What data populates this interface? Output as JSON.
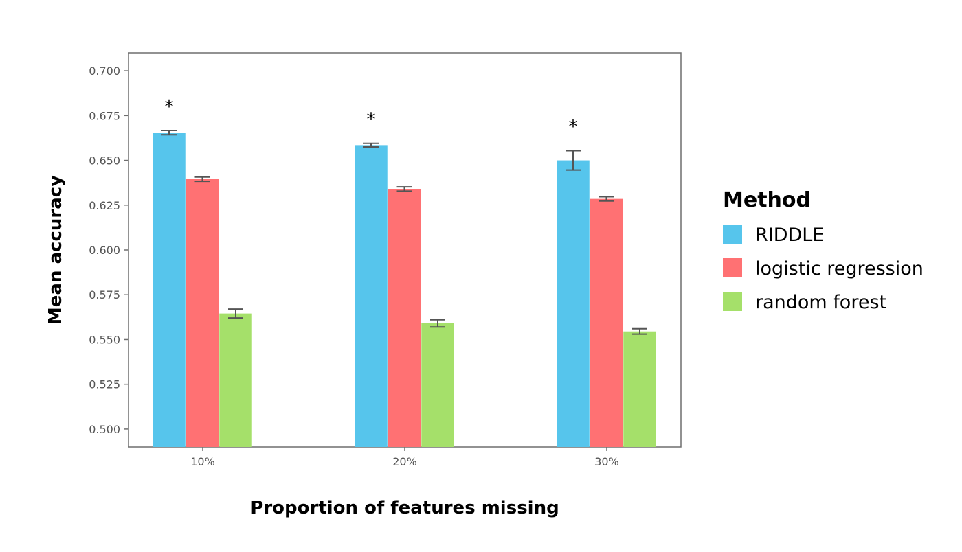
{
  "chart_data": {
    "type": "bar",
    "xlabel": "Proportion of features missing",
    "ylabel": "Mean accuracy",
    "ylim": [
      0.49,
      0.71
    ],
    "yticks": [
      0.5,
      0.525,
      0.55,
      0.575,
      0.6,
      0.625,
      0.65,
      0.675,
      0.7
    ],
    "ytick_labels": [
      "0.500",
      "0.525",
      "0.550",
      "0.575",
      "0.600",
      "0.625",
      "0.650",
      "0.675",
      "0.700"
    ],
    "categories": [
      "10%",
      "20%",
      "30%"
    ],
    "series": [
      {
        "name": "RIDDLE",
        "color": "#56c5ec",
        "values": [
          0.6655,
          0.6585,
          0.65
        ],
        "error": [
          0.0012,
          0.001,
          0.0054
        ]
      },
      {
        "name": "logistic regression",
        "color": "#ff7173",
        "values": [
          0.6395,
          0.634,
          0.6285
        ],
        "error": [
          0.0012,
          0.0012,
          0.0012
        ]
      },
      {
        "name": "random forest",
        "color": "#a5e06a",
        "values": [
          0.5645,
          0.559,
          0.5545
        ],
        "error": [
          0.0025,
          0.002,
          0.0015
        ]
      }
    ],
    "annotations": [
      {
        "category": "10%",
        "text": "*",
        "value": 0.682
      },
      {
        "category": "20%",
        "text": "*",
        "value": 0.675
      },
      {
        "category": "30%",
        "text": "*",
        "value": 0.671
      }
    ],
    "legend": {
      "title": "Method",
      "placement": "right"
    },
    "grid": false
  }
}
